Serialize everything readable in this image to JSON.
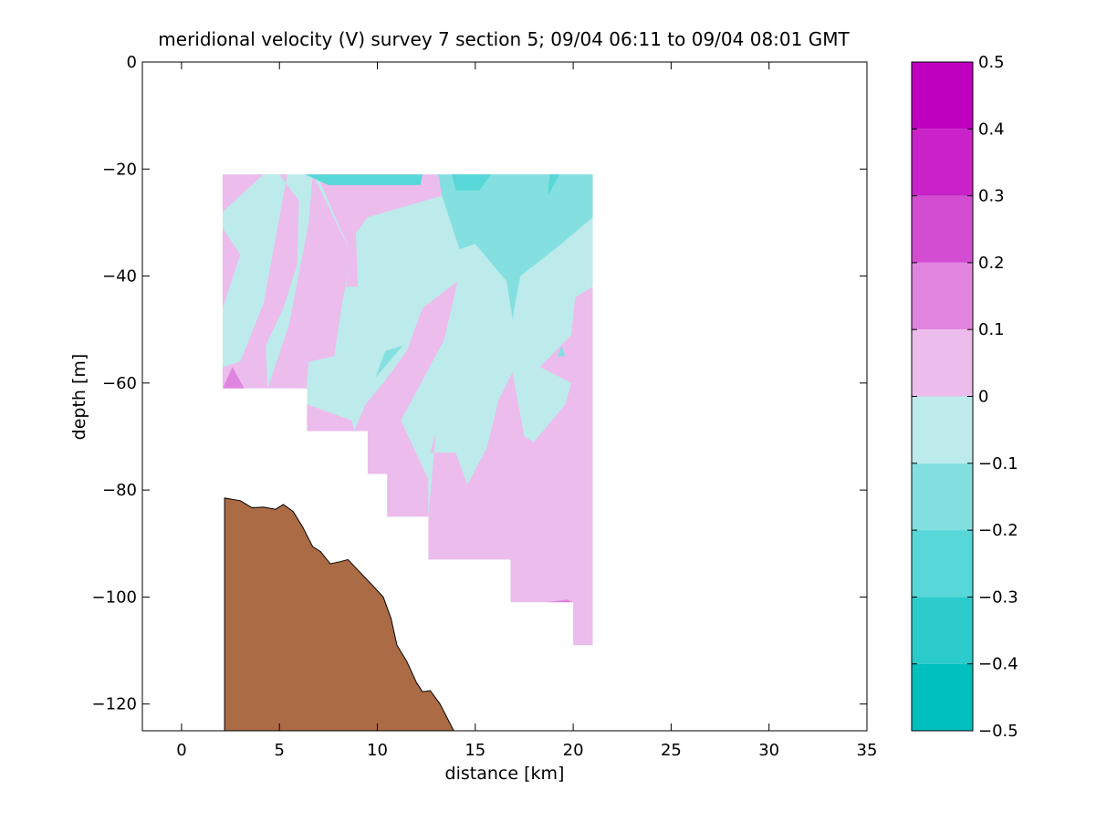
{
  "chart_data": {
    "type": "contour",
    "title": "meridional velocity (V) survey 7 section 5; 09/04 06:11 to 09/04 08:01 GMT",
    "xlabel": "distance [km]",
    "ylabel": "depth [m]",
    "xlim": [
      -2,
      35
    ],
    "ylim": [
      -125,
      0
    ],
    "xticks": [
      0,
      5,
      10,
      15,
      20,
      25,
      30,
      35
    ],
    "yticks": [
      0,
      -20,
      -40,
      -60,
      -80,
      -100,
      -120
    ],
    "colorbar": {
      "range": [
        -0.5,
        0.5
      ],
      "ticks": [
        0.5,
        0.4,
        0.3,
        0.2,
        0.1,
        0,
        -0.1,
        -0.2,
        -0.3,
        -0.4,
        -0.5
      ],
      "tick_labels": [
        "0.5",
        "0.4",
        "0.3",
        "0.2",
        "0.1",
        "0",
        "−0.1",
        "−0.2",
        "−0.3",
        "−0.4",
        "−0.5"
      ],
      "levels": [
        {
          "min": 0.4,
          "max": 0.5,
          "color": "#bf00bf"
        },
        {
          "min": 0.3,
          "max": 0.4,
          "color": "#c822c8"
        },
        {
          "min": 0.2,
          "max": 0.3,
          "color": "#d34dd3"
        },
        {
          "min": 0.1,
          "max": 0.2,
          "color": "#e084e0"
        },
        {
          "min": 0.0,
          "max": 0.1,
          "color": "#ecbcec"
        },
        {
          "min": -0.1,
          "max": 0.0,
          "color": "#bdebeb"
        },
        {
          "min": -0.2,
          "max": -0.1,
          "color": "#84e0e0"
        },
        {
          "min": -0.3,
          "max": -0.2,
          "color": "#57d7d7"
        },
        {
          "min": -0.4,
          "max": -0.3,
          "color": "#2bcbcb"
        },
        {
          "min": -0.5,
          "max": -0.4,
          "color": "#00bfbf"
        }
      ]
    },
    "section_extent": {
      "x_range": [
        2.1,
        21.0
      ],
      "top_depth": -21,
      "bottom_profile": [
        [
          2.1,
          -61
        ],
        [
          6.4,
          -61
        ],
        [
          6.4,
          -69
        ],
        [
          9.5,
          -69
        ],
        [
          9.5,
          -77
        ],
        [
          10.5,
          -77
        ],
        [
          10.5,
          -85
        ],
        [
          12.6,
          -85
        ],
        [
          12.6,
          -93
        ],
        [
          16.8,
          -93
        ],
        [
          16.8,
          -101
        ],
        [
          20.0,
          -101
        ],
        [
          20.0,
          -109
        ],
        [
          21.0,
          -109
        ]
      ]
    },
    "bathymetry": {
      "color": "#ab6b45",
      "profile": [
        [
          2.2,
          -81.5
        ],
        [
          3.0,
          -82
        ],
        [
          3.6,
          -83.3
        ],
        [
          4.2,
          -83.2
        ],
        [
          4.8,
          -83.6
        ],
        [
          5.2,
          -82.7
        ],
        [
          5.7,
          -84
        ],
        [
          6.2,
          -87
        ],
        [
          6.7,
          -90.6
        ],
        [
          7.1,
          -91.5
        ],
        [
          7.6,
          -93.8
        ],
        [
          8.1,
          -93.4
        ],
        [
          8.5,
          -93
        ],
        [
          9.2,
          -95.7
        ],
        [
          9.8,
          -98
        ],
        [
          10.3,
          -100
        ],
        [
          10.7,
          -104
        ],
        [
          11.0,
          -109
        ],
        [
          11.5,
          -112
        ],
        [
          12.0,
          -116
        ],
        [
          12.3,
          -117.7
        ],
        [
          12.7,
          -117.5
        ],
        [
          13.2,
          -120
        ],
        [
          13.9,
          -125
        ]
      ]
    },
    "regions": [
      {
        "level": 0.05,
        "points": [
          [
            2.1,
            -21
          ],
          [
            4.2,
            -21
          ],
          [
            2.1,
            -28
          ]
        ]
      },
      {
        "level": 0.05,
        "points": [
          [
            2.1,
            -31
          ],
          [
            3.0,
            -36
          ],
          [
            2.1,
            -46
          ]
        ]
      },
      {
        "level": -0.05,
        "points": [
          [
            2.1,
            -46
          ],
          [
            3.0,
            -36
          ],
          [
            2.1,
            -31
          ],
          [
            2.1,
            -28
          ],
          [
            4.2,
            -21
          ],
          [
            5.0,
            -21
          ],
          [
            6.0,
            -26
          ],
          [
            4.2,
            -45
          ],
          [
            3.0,
            -56
          ],
          [
            2.1,
            -57
          ]
        ]
      },
      {
        "level": 0.05,
        "points": [
          [
            5.0,
            -21
          ],
          [
            5.4,
            -21
          ],
          [
            4.2,
            -45
          ],
          [
            3.0,
            -56
          ],
          [
            2.1,
            -57
          ],
          [
            2.1,
            -61
          ],
          [
            6.4,
            -61
          ],
          [
            6.4,
            -69
          ],
          [
            8.8,
            -69
          ],
          [
            8.7,
            -67
          ],
          [
            6.4,
            -64
          ],
          [
            6.4,
            -60
          ],
          [
            4.4,
            -61
          ],
          [
            4.3,
            -53
          ],
          [
            5.2,
            -46
          ],
          [
            5.9,
            -38
          ],
          [
            6.0,
            -26
          ]
        ]
      },
      {
        "level": 0.15,
        "points": [
          [
            2.1,
            -61
          ],
          [
            2.6,
            -57
          ],
          [
            3.2,
            -61
          ]
        ]
      },
      {
        "level": 0.05,
        "points": [
          [
            6.7,
            -21
          ],
          [
            6.5,
            -30
          ],
          [
            5.5,
            -49
          ],
          [
            4.4,
            -61
          ],
          [
            6.4,
            -60
          ],
          [
            6.5,
            -56
          ],
          [
            7.8,
            -55
          ],
          [
            8.2,
            -45
          ],
          [
            8.7,
            -36
          ]
        ]
      },
      {
        "level": 0.05,
        "points": [
          [
            6.9,
            -21
          ],
          [
            13.1,
            -21
          ],
          [
            13.3,
            -25
          ],
          [
            9.5,
            -29
          ],
          [
            8.9,
            -32
          ],
          [
            9.0,
            -42
          ],
          [
            8.4,
            -42
          ],
          [
            8.7,
            -36
          ]
        ]
      },
      {
        "level": 0.05,
        "points": [
          [
            8.8,
            -69
          ],
          [
            9.5,
            -69
          ],
          [
            9.5,
            -77
          ],
          [
            10.5,
            -77
          ],
          [
            10.5,
            -85
          ],
          [
            12.6,
            -85
          ],
          [
            12.6,
            -78
          ],
          [
            11.2,
            -67
          ],
          [
            13.4,
            -52
          ],
          [
            14.1,
            -41
          ],
          [
            12.3,
            -46
          ],
          [
            11.5,
            -54
          ],
          [
            10.3,
            -60
          ],
          [
            9.4,
            -64
          ]
        ]
      },
      {
        "level": 0.05,
        "points": [
          [
            12.6,
            -85
          ],
          [
            12.6,
            -93
          ],
          [
            16.8,
            -93
          ],
          [
            16.8,
            -101
          ],
          [
            20.0,
            -101
          ],
          [
            20.0,
            -109
          ],
          [
            21.0,
            -109
          ],
          [
            21.0,
            -42
          ],
          [
            20.1,
            -44
          ],
          [
            19.9,
            -51
          ],
          [
            18.3,
            -57
          ],
          [
            19.9,
            -60
          ],
          [
            19.6,
            -64
          ],
          [
            18.0,
            -71
          ],
          [
            17.5,
            -70
          ],
          [
            16.9,
            -58
          ],
          [
            16.2,
            -63
          ],
          [
            15.6,
            -72
          ],
          [
            14.6,
            -79
          ],
          [
            14.0,
            -73
          ],
          [
            12.7,
            -73
          ],
          [
            13.0,
            -69
          ]
        ]
      },
      {
        "level": 0.05,
        "points": [
          [
            20.1,
            -44
          ],
          [
            19.9,
            -51
          ],
          [
            20.6,
            -52
          ],
          [
            20.6,
            -46
          ]
        ]
      },
      {
        "level": -0.15,
        "points": [
          [
            13.1,
            -21
          ],
          [
            21.0,
            -21
          ],
          [
            21.0,
            -29
          ],
          [
            19.4,
            -34
          ],
          [
            17.3,
            -40
          ],
          [
            16.9,
            -48
          ],
          [
            16.6,
            -41
          ],
          [
            15.0,
            -34
          ],
          [
            14.2,
            -35
          ],
          [
            13.3,
            -25
          ]
        ]
      },
      {
        "level": -0.15,
        "points": [
          [
            10.4,
            -54
          ],
          [
            11.3,
            -53
          ],
          [
            9.9,
            -59
          ],
          [
            9.6,
            -62
          ]
        ]
      },
      {
        "level": -0.15,
        "points": [
          [
            19.2,
            -55
          ],
          [
            19.4,
            -53
          ],
          [
            19.6,
            -55
          ]
        ]
      },
      {
        "level": -0.25,
        "points": [
          [
            6.3,
            -21
          ],
          [
            12.3,
            -21
          ],
          [
            12.2,
            -23
          ],
          [
            10.1,
            -23
          ],
          [
            7.5,
            -23
          ]
        ]
      },
      {
        "level": -0.25,
        "points": [
          [
            13.8,
            -21
          ],
          [
            15.8,
            -21
          ],
          [
            15.2,
            -24
          ],
          [
            14.0,
            -24
          ]
        ]
      },
      {
        "level": -0.25,
        "points": [
          [
            18.8,
            -21
          ],
          [
            19.3,
            -21
          ],
          [
            18.7,
            -25
          ]
        ]
      },
      {
        "level": 0.15,
        "points": [
          [
            19.7,
            -100.5
          ],
          [
            20.0,
            -101
          ],
          [
            18.6,
            -101
          ]
        ]
      }
    ]
  }
}
